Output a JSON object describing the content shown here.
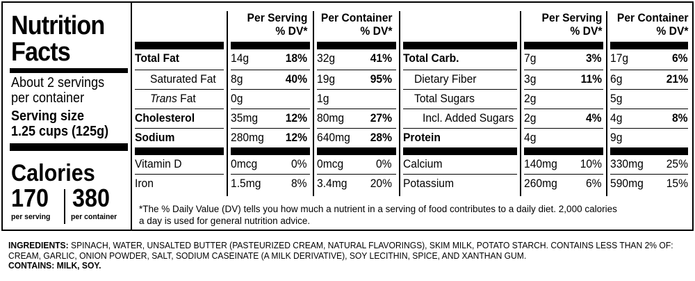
{
  "title_line1": "Nutrition",
  "title_line2": "Facts",
  "servings_line1": "About 2 servings",
  "servings_line2": "per container",
  "serving_size_label": "Serving size",
  "serving_size_value": "1.25 cups (125g)",
  "calories_label": "Calories",
  "calories_per_serving": "170",
  "calories_per_container": "380",
  "calories_per_serving_label": "per serving",
  "calories_per_container_label": "per container",
  "col_per_serving_1": "Per Serving",
  "col_dv_1": "% DV*",
  "col_per_container_1": "Per Container",
  "col_dv_2": "% DV*",
  "col_per_serving_2": "Per Serving",
  "col_dv_3": "% DV*",
  "col_per_container_2": "Per Container",
  "col_dv_4": "% DV*",
  "left_rows": [
    {
      "name": "Total Fat",
      "s_amt": "14g",
      "s_dv": "18%",
      "c_amt": "32g",
      "c_dv": "41%"
    },
    {
      "name": "Saturated Fat",
      "s_amt": "8g",
      "s_dv": "40%",
      "c_amt": "19g",
      "c_dv": "95%"
    },
    {
      "name_italic": "Trans",
      "name_rest": " Fat",
      "s_amt": "0g",
      "s_dv": "",
      "c_amt": "1g",
      "c_dv": ""
    },
    {
      "name": "Cholesterol",
      "s_amt": "35mg",
      "s_dv": "12%",
      "c_amt": "80mg",
      "c_dv": "27%"
    },
    {
      "name": "Sodium",
      "s_amt": "280mg",
      "s_dv": "12%",
      "c_amt": "640mg",
      "c_dv": "28%"
    },
    {
      "name": "Vitamin D",
      "s_amt": "0mcg",
      "s_dv": "0%",
      "c_amt": "0mcg",
      "c_dv": "0%"
    },
    {
      "name": "Iron",
      "s_amt": "1.5mg",
      "s_dv": "8%",
      "c_amt": "3.4mg",
      "c_dv": "20%"
    }
  ],
  "right_rows": [
    {
      "name": "Total Carb.",
      "s_amt": "7g",
      "s_dv": "3%",
      "c_amt": "17g",
      "c_dv": "6%"
    },
    {
      "name": "Dietary Fiber",
      "s_amt": "3g",
      "s_dv": "11%",
      "c_amt": "6g",
      "c_dv": "21%"
    },
    {
      "name": "Total Sugars",
      "s_amt": "2g",
      "s_dv": "",
      "c_amt": "5g",
      "c_dv": ""
    },
    {
      "name": "Incl. Added Sugars",
      "s_amt": "2g",
      "s_dv": "4%",
      "c_amt": "4g",
      "c_dv": "8%"
    },
    {
      "name": "Protein",
      "s_amt": "4g",
      "s_dv": "",
      "c_amt": "9g",
      "c_dv": ""
    },
    {
      "name": "Calcium",
      "s_amt": "140mg",
      "s_dv": "10%",
      "c_amt": "330mg",
      "c_dv": "25%"
    },
    {
      "name": "Potassium",
      "s_amt": "260mg",
      "s_dv": "6%",
      "c_amt": "590mg",
      "c_dv": "15%"
    }
  ],
  "footnote_line1": "*The % Daily Value (DV) tells you how much a nutrient in a serving of food contributes to a daily diet. 2,000 calories",
  "footnote_line2": "a day is used for general nutrition advice.",
  "ingredients_label": "INGREDIENTS:",
  "ingredients_line1": " SPINACH, WATER, UNSALTED BUTTER (PASTEURIZED CREAM, NATURAL FLAVORINGS), SKIM MILK, POTATO STARCH. CONTAINS LESS THAN 2% OF:",
  "ingredients_line2": "CREAM, GARLIC, ONION POWDER, SALT, SODIUM CASEINATE (A MILK DERIVATIVE), SOY LECITHIN, SPICE, AND XANTHAN GUM.",
  "contains_line": "CONTAINS: MILK, SOY."
}
